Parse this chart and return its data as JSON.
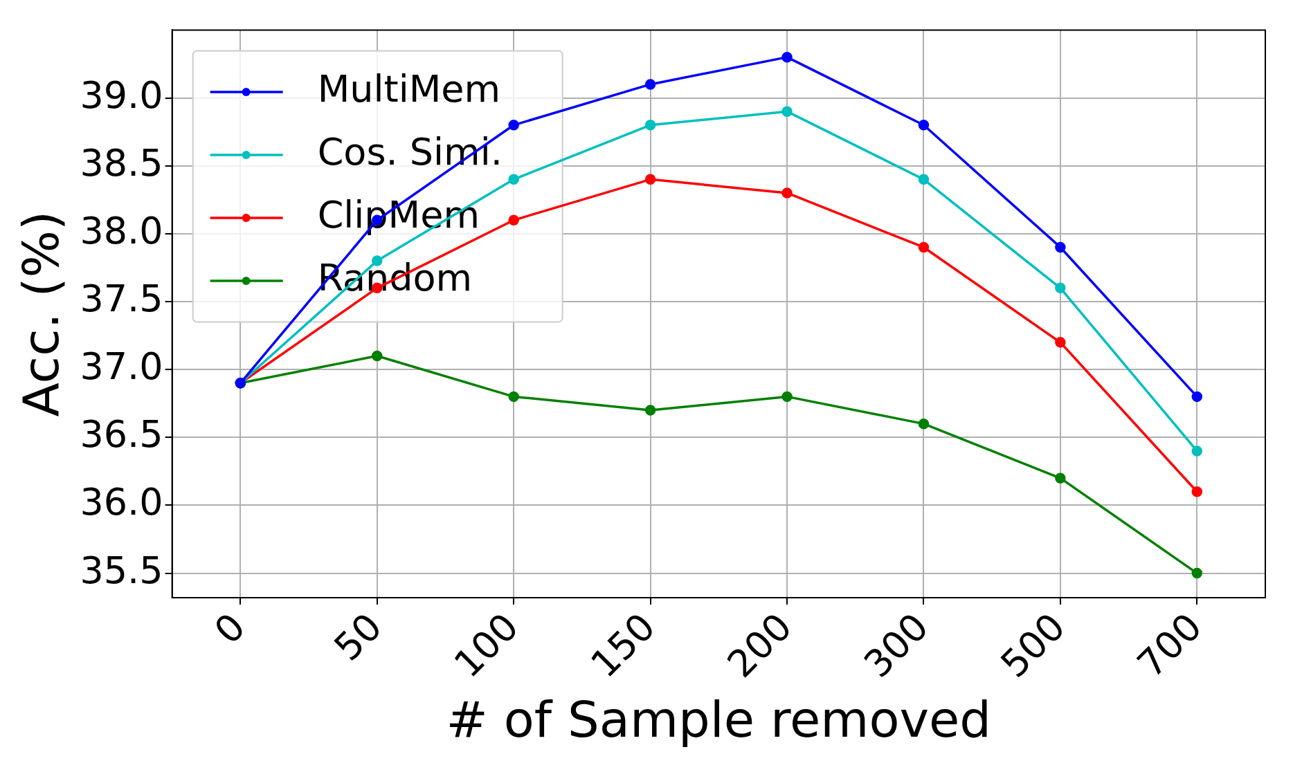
{
  "chart_data": {
    "type": "line",
    "xlabel": "# of Sample removed",
    "ylabel": "Acc. (%)",
    "categories": [
      "0",
      "50",
      "100",
      "150",
      "200",
      "300",
      "500",
      "700"
    ],
    "series": [
      {
        "name": "MultiMem",
        "color": "#0000ff",
        "values": [
          36.9,
          38.1,
          38.8,
          39.1,
          39.3,
          38.8,
          37.9,
          36.8
        ]
      },
      {
        "name": "Cos. Simi.",
        "color": "#00bfbf",
        "values": [
          36.9,
          37.8,
          38.4,
          38.8,
          38.9,
          38.4,
          37.6,
          36.4
        ]
      },
      {
        "name": "ClipMem",
        "color": "#ff0000",
        "values": [
          36.9,
          37.6,
          38.1,
          38.4,
          38.3,
          37.9,
          37.2,
          36.1
        ]
      },
      {
        "name": "Random",
        "color": "#008000",
        "values": [
          36.9,
          37.1,
          36.8,
          36.7,
          36.8,
          36.6,
          36.2,
          35.5
        ]
      }
    ],
    "ylim": [
      35.32,
      39.5
    ],
    "yticks": [
      35.5,
      {
        "value": 36,
        "label": "36.0"
      },
      36.5,
      {
        "value": 37,
        "label": "37.0"
      },
      37.5,
      {
        "value": 38,
        "label": "38.0"
      },
      38.5,
      {
        "value": 39,
        "label": "39.0"
      }
    ],
    "grid": true,
    "legend": "top left",
    "marker": "circle",
    "line_style": "solid"
  }
}
